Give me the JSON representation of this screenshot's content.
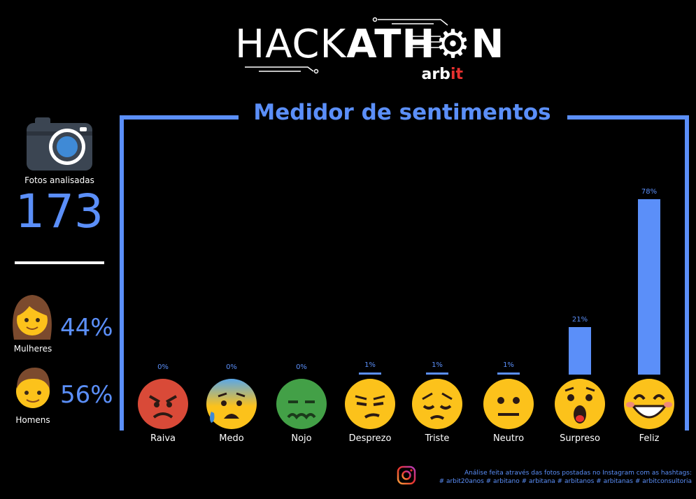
{
  "header": {
    "logo_main_thin": "HACK",
    "logo_main_bold": "ATH",
    "logo_main_bold2": "N",
    "logo_sub_white": "arb",
    "logo_sub_red": "it"
  },
  "sidebar": {
    "photos_label": "Fotos analisadas",
    "photos_count": "173",
    "women_pct": "44%",
    "women_label": "Mulheres",
    "men_pct": "56%",
    "men_label": "Homens"
  },
  "chart_data": {
    "type": "bar",
    "title": "Medidor de sentimentos",
    "categories": [
      "Raiva",
      "Medo",
      "Nojo",
      "Desprezo",
      "Triste",
      "Neutro",
      "Surpreso",
      "Feliz"
    ],
    "values": [
      0,
      0,
      0,
      1,
      1,
      1,
      21,
      78
    ],
    "value_labels": [
      "0%",
      "0%",
      "0%",
      "1%",
      "1%",
      "1%",
      "21%",
      "78%"
    ],
    "ylim": [
      0,
      100
    ],
    "grid": false
  },
  "footer": {
    "line1": "Análise feita através das fotos postadas no Instagram com as hashtags:",
    "line2": "# arbit20anos # arbitano # arbitana # arbitanos # arbitanas # arbitconsultoria"
  },
  "colors": {
    "accent": "#5b8ff9",
    "logo_red": "#e8312f",
    "emoji_raiva": "#d94a38",
    "emoji_nojo": "#43a047",
    "emoji_yellow": "#fcc21b"
  }
}
